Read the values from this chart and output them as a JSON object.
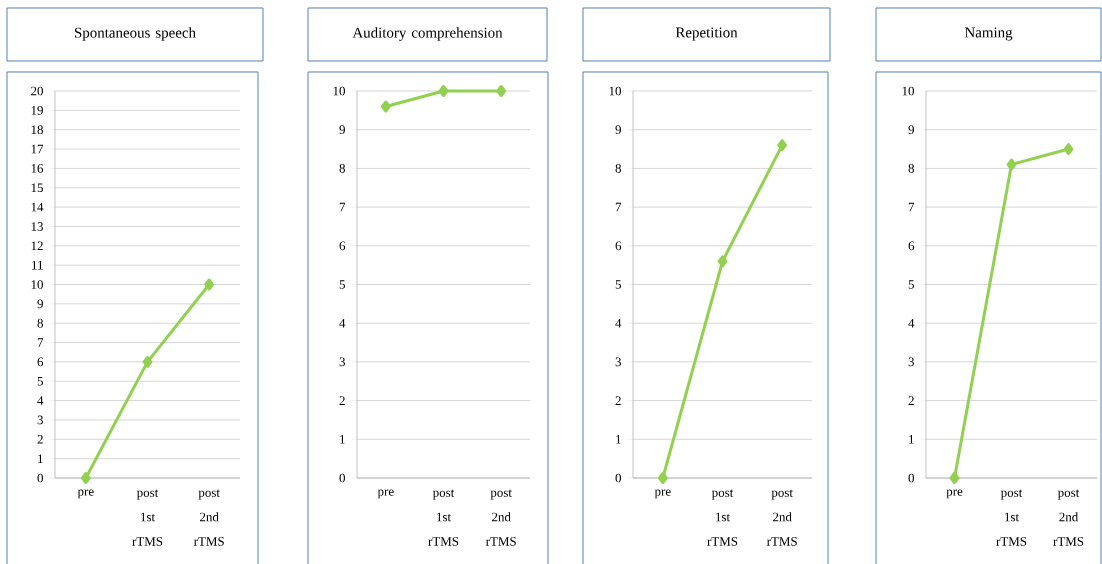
{
  "chart_data": [
    {
      "type": "line",
      "title": "Spontaneous speech",
      "categories": [
        "pre",
        "post 1st rTMS",
        "post 2nd rTMS"
      ],
      "series": [
        {
          "color": "#92d050",
          "values": [
            0,
            6,
            10
          ]
        }
      ],
      "ylim": [
        0,
        20
      ],
      "yticks": [
        0,
        1,
        2,
        3,
        4,
        5,
        6,
        7,
        8,
        9,
        10,
        11,
        12,
        13,
        14,
        15,
        16,
        17,
        18,
        19,
        20
      ],
      "grid": "y",
      "marker": "diamond",
      "line_style": "solid"
    },
    {
      "type": "line",
      "title": "Auditory comprehension",
      "categories": [
        "pre",
        "post 1st rTMS",
        "post 2nd rTMS"
      ],
      "series": [
        {
          "color": "#92d050",
          "values": [
            9.6,
            10,
            10
          ]
        }
      ],
      "ylim": [
        0,
        10
      ],
      "yticks": [
        0,
        1,
        2,
        3,
        4,
        5,
        6,
        7,
        8,
        9,
        10
      ],
      "grid": "y",
      "marker": "diamond",
      "line_style": "solid"
    },
    {
      "type": "line",
      "title": "Repetition",
      "categories": [
        "pre",
        "post 1st rTMS",
        "post 2nd rTMS"
      ],
      "series": [
        {
          "color": "#92d050",
          "values": [
            0,
            5.6,
            8.6
          ]
        }
      ],
      "ylim": [
        0,
        10
      ],
      "yticks": [
        0,
        1,
        2,
        3,
        4,
        5,
        6,
        7,
        8,
        9,
        10
      ],
      "grid": "y",
      "marker": "diamond",
      "line_style": "solid"
    },
    {
      "type": "line",
      "title": "Naming",
      "categories": [
        "pre",
        "post 1st rTMS",
        "post 2nd rTMS"
      ],
      "series": [
        {
          "color": "#92d050",
          "values": [
            0,
            8.1,
            8.5
          ]
        }
      ],
      "ylim": [
        0,
        10
      ],
      "yticks": [
        0,
        1,
        2,
        3,
        4,
        5,
        6,
        7,
        8,
        9,
        10
      ],
      "grid": "y",
      "marker": "diamond",
      "line_style": "solid"
    }
  ]
}
